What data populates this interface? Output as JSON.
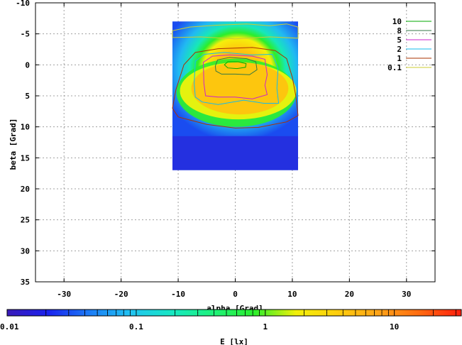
{
  "chart_data": {
    "type": "heatmap",
    "xlabel": "alpha [Grad]",
    "ylabel": "beta [Grad]",
    "colorbar_label": "E [lx]",
    "xlim": [
      -35,
      35
    ],
    "ylim": [
      -10,
      35
    ],
    "y_inverted": true,
    "x_ticks": [
      "-30",
      "-20",
      "-10",
      "0",
      "10",
      "20",
      "30"
    ],
    "y_ticks": [
      "-10",
      "-5",
      "0",
      "5",
      "10",
      "15",
      "20",
      "25",
      "30",
      "35"
    ],
    "grid": true,
    "data_extent": {
      "alpha": [
        -11,
        11
      ],
      "beta": [
        -7,
        17
      ]
    },
    "colorbar": {
      "scale": "log",
      "range": [
        0.01,
        33
      ],
      "ticks": [
        "0.01",
        "0.1",
        "1",
        "10"
      ],
      "stops": [
        "#3a1bb8",
        "#1a22ee",
        "#1c7cf6",
        "#21c4f2",
        "#17e8c2",
        "#1ef27a",
        "#2bee2b",
        "#f2f00a",
        "#ffce0d",
        "#ffa318",
        "#ff6a10",
        "#ff1e0e"
      ]
    },
    "contour_legend": [
      {
        "label": "10",
        "color": "#00aa00"
      },
      {
        "label": "8",
        "color": "#337744"
      },
      {
        "label": "5",
        "color": "#cc22cc"
      },
      {
        "label": "2",
        "color": "#11bbee"
      },
      {
        "label": "1",
        "color": "#aa3300"
      },
      {
        "label": "0.1",
        "color": "#cccc33"
      }
    ]
  }
}
